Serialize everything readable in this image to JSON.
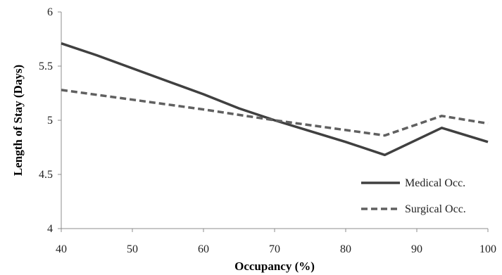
{
  "chart_data": {
    "type": "line",
    "title": "",
    "xlabel": "Occupancy (%)",
    "ylabel": "Length of Stay (Days)",
    "xlim": [
      40,
      100
    ],
    "ylim": [
      4,
      6
    ],
    "x_ticks": [
      "40",
      "50",
      "60",
      "70",
      "80",
      "90",
      "100"
    ],
    "y_ticks": [
      "4",
      "4.5",
      "5",
      "5.5",
      "6"
    ],
    "grid": false,
    "legend_position": "right",
    "series": [
      {
        "name": "Medical Occ.",
        "color": "#404040",
        "style": "solid",
        "x": [
          40,
          45,
          50,
          55,
          60,
          65,
          70,
          75,
          80,
          85.5,
          93.5,
          100
        ],
        "y": [
          5.71,
          5.6,
          5.48,
          5.36,
          5.24,
          5.11,
          5.0,
          4.9,
          4.8,
          4.68,
          4.93,
          4.8
        ]
      },
      {
        "name": "Surgical Occ.",
        "color": "#606060",
        "style": "dashed",
        "x": [
          40,
          50,
          60,
          70,
          80,
          85.5,
          93.5,
          100
        ],
        "y": [
          5.28,
          5.19,
          5.1,
          5.0,
          4.91,
          4.86,
          5.04,
          4.97
        ]
      }
    ]
  }
}
